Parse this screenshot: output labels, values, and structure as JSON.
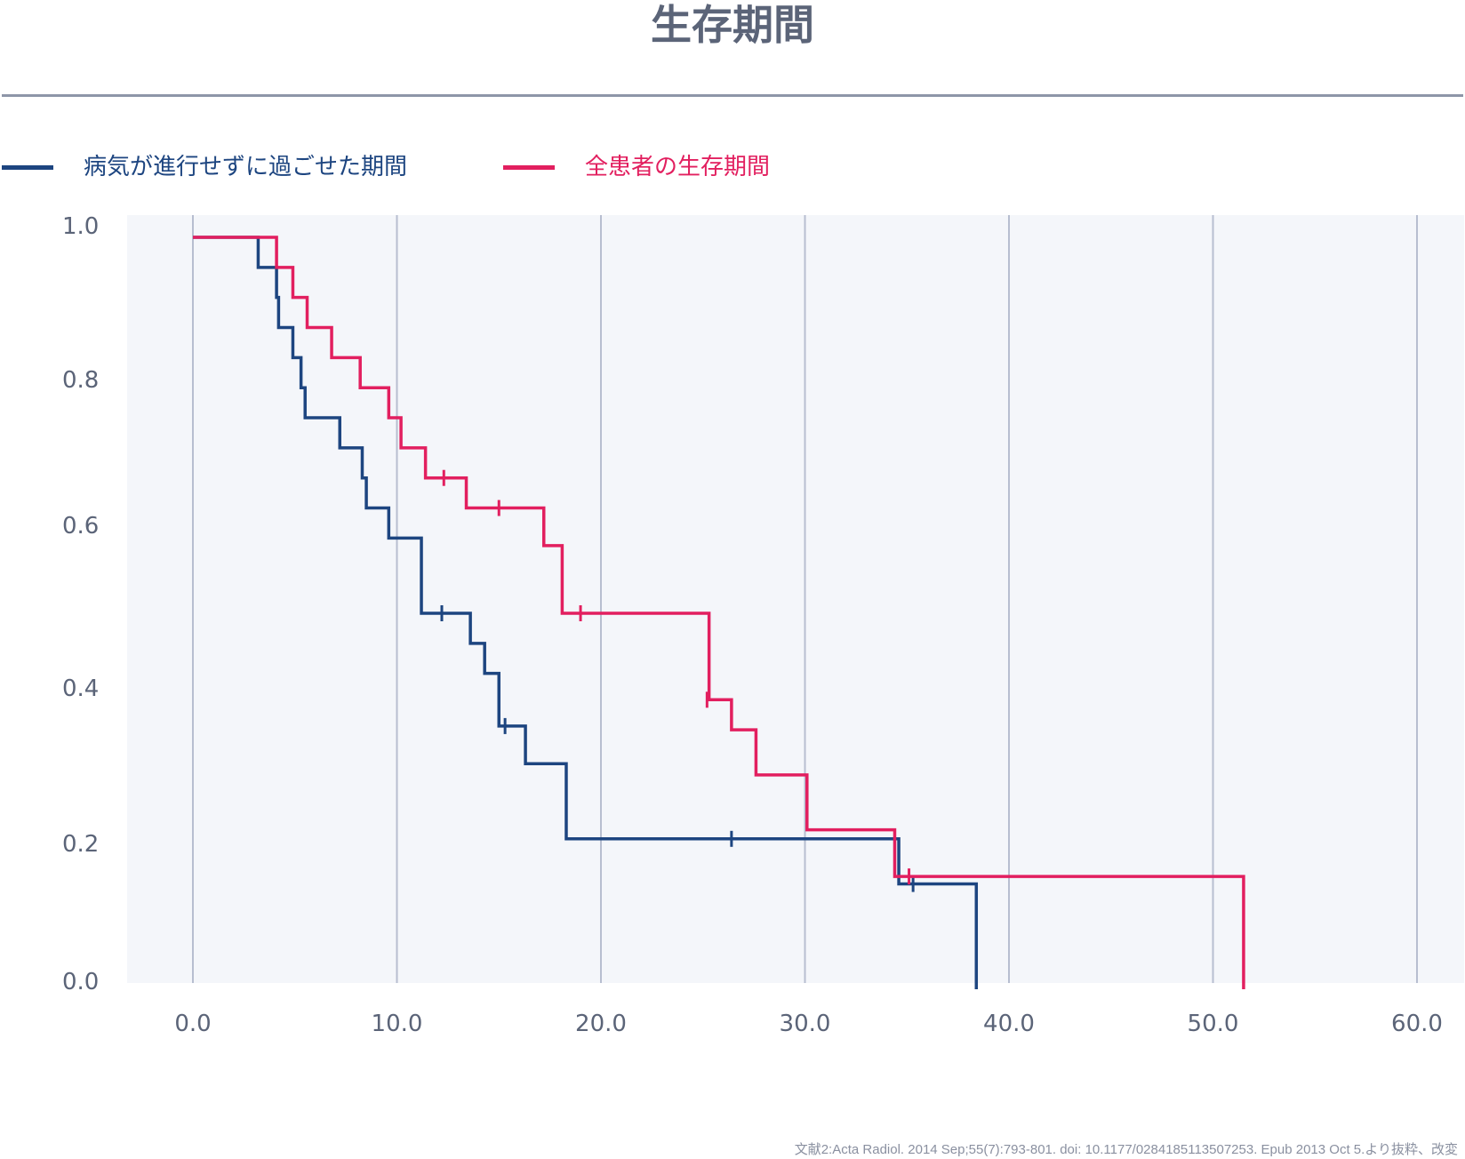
{
  "chart_data": {
    "type": "line",
    "title": "生存期間",
    "xlabel": "",
    "ylabel": "",
    "xlim": [
      -3.2,
      62
    ],
    "ylim": [
      -0.01,
      1.02
    ],
    "x_ticks": [
      "0.0",
      "10.0",
      "20.0",
      "30.0",
      "40.0",
      "50.0",
      "60.0"
    ],
    "y_ticks": [
      "1.0",
      "0.8",
      "0.6",
      "0.4",
      "0.2",
      "0.0"
    ],
    "grid": "vertical",
    "legend_position": "top-left",
    "series": [
      {
        "name": "病気が進行せずに過ごせた期間",
        "color": "#1d4580",
        "steps": [
          [
            0,
            1.0
          ],
          [
            3.2,
            0.96
          ],
          [
            4.1,
            0.92
          ],
          [
            4.2,
            0.88
          ],
          [
            4.9,
            0.84
          ],
          [
            5.3,
            0.8
          ],
          [
            5.5,
            0.76
          ],
          [
            7.2,
            0.72
          ],
          [
            8.3,
            0.68
          ],
          [
            8.5,
            0.64
          ],
          [
            9.6,
            0.6
          ],
          [
            11.2,
            0.5
          ],
          [
            13.6,
            0.46
          ],
          [
            14.3,
            0.42
          ],
          [
            15.0,
            0.35
          ],
          [
            16.3,
            0.3
          ],
          [
            18.3,
            0.2
          ],
          [
            34.6,
            0.14
          ]
        ],
        "end": [
          38.4,
          0.0
        ],
        "censor": [
          [
            12.2,
            0.5
          ],
          [
            15.3,
            0.35
          ],
          [
            26.4,
            0.2
          ],
          [
            35.3,
            0.14
          ]
        ]
      },
      {
        "name": "全患者の生存期間",
        "color": "#e21f5f",
        "steps": [
          [
            0,
            1.0
          ],
          [
            4.1,
            0.96
          ],
          [
            4.9,
            0.92
          ],
          [
            5.6,
            0.88
          ],
          [
            6.8,
            0.84
          ],
          [
            8.2,
            0.8
          ],
          [
            9.6,
            0.76
          ],
          [
            10.2,
            0.72
          ],
          [
            11.4,
            0.68
          ],
          [
            13.4,
            0.64
          ],
          [
            17.2,
            0.59
          ],
          [
            18.1,
            0.5
          ],
          [
            25.3,
            0.385
          ],
          [
            26.4,
            0.345
          ],
          [
            27.6,
            0.285
          ],
          [
            30.1,
            0.212
          ],
          [
            34.4,
            0.15
          ]
        ],
        "end": [
          51.5,
          0.0
        ],
        "censor": [
          [
            12.3,
            0.68
          ],
          [
            15.0,
            0.64
          ],
          [
            19.0,
            0.5
          ],
          [
            25.2,
            0.385
          ],
          [
            35.1,
            0.15
          ]
        ]
      }
    ]
  },
  "source_note": "文献2:Acta Radiol. 2014 Sep;55(7):793-801. doi: 10.1177/0284185113507253. Epub 2013 Oct 5.より抜粋、改変"
}
